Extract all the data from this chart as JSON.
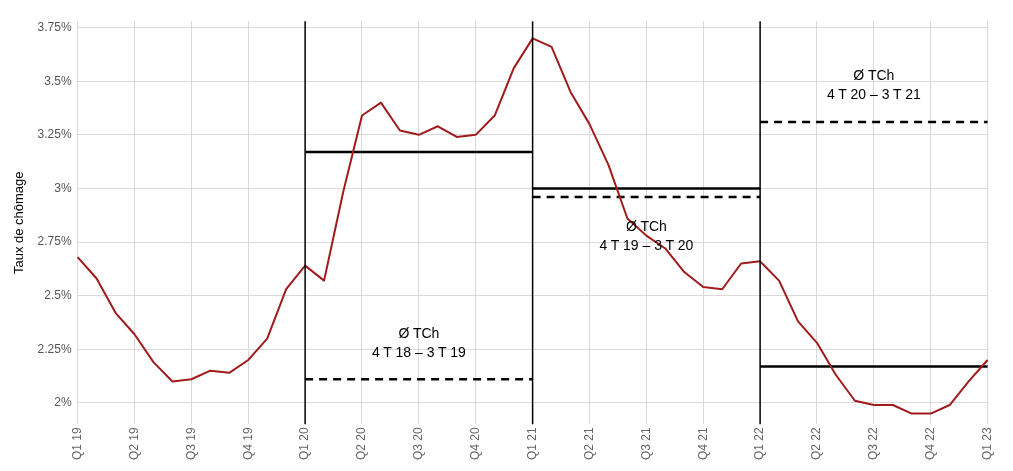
{
  "chart_data": {
    "type": "line",
    "ylabel": "Taux de chômage",
    "categories": [
      "Q1 19",
      null,
      null,
      "Q2 19",
      null,
      null,
      "Q3 19",
      null,
      null,
      "Q4 19",
      null,
      null,
      "Q1 20",
      null,
      null,
      "Q2 20",
      null,
      null,
      "Q3 20",
      null,
      null,
      "Q4 20",
      null,
      null,
      "Q1 21",
      null,
      null,
      "Q2 21",
      null,
      null,
      "Q3 21",
      null,
      null,
      "Q4 21",
      null,
      null,
      "Q1 22",
      null,
      null,
      "Q2 22",
      null,
      null,
      "Q3 22",
      null,
      null,
      "Q4 22",
      null,
      null,
      "Q1 23"
    ],
    "ylim": [
      1.9,
      3.78
    ],
    "yticks": [
      {
        "value": 2,
        "label": "2%"
      },
      {
        "value": 2.25,
        "label": "2.25%"
      },
      {
        "value": 2.5,
        "label": "2.5%"
      },
      {
        "value": 2.75,
        "label": "2.75%"
      },
      {
        "value": 3,
        "label": "3%"
      },
      {
        "value": 3.25,
        "label": "3.25%"
      },
      {
        "value": 3.5,
        "label": "3.5%"
      },
      {
        "value": 3.75,
        "label": "3.75%"
      }
    ],
    "series": [
      {
        "color": "#a01c1c",
        "line_style": "solid",
        "values": [
          2.68,
          2.58,
          2.42,
          2.32,
          2.19,
          2.1,
          2.11,
          2.15,
          2.14,
          2.2,
          2.3,
          2.53,
          2.64,
          2.57,
          2.98,
          3.34,
          3.4,
          3.27,
          3.25,
          3.29,
          3.24,
          3.25,
          3.34,
          3.56,
          3.7,
          3.66,
          3.45,
          3.3,
          3.11,
          2.86,
          2.78,
          2.72,
          2.61,
          2.54,
          2.53,
          2.65,
          2.66,
          2.57,
          2.38,
          2.28,
          2.13,
          2.01,
          1.99,
          1.99,
          1.95,
          1.95,
          1.99,
          2.1,
          2.2
        ]
      },
      {
        "type": "line",
        "color": "#000000",
        "line_style": "solid",
        "x": [
          "Q1 20",
          "Q1 21"
        ],
        "values": [
          3.17,
          3.17
        ]
      },
      {
        "type": "line",
        "color": "#000000",
        "line_style": "dashed",
        "x": [
          "Q1 20",
          "Q1 21"
        ],
        "values": [
          2.11,
          2.11
        ]
      },
      {
        "type": "line",
        "color": "#000000",
        "line_style": "solid",
        "x": [
          "Q1 21",
          "Q1 22"
        ],
        "values": [
          3.0,
          3.0
        ]
      },
      {
        "type": "line",
        "color": "#000000",
        "line_style": "dashed",
        "x": [
          "Q1 21",
          "Q1 22"
        ],
        "values": [
          2.96,
          2.96
        ]
      },
      {
        "type": "line",
        "color": "#000000",
        "line_style": "dashed",
        "x": [
          "Q1 22",
          "Q1 23"
        ],
        "values": [
          3.31,
          3.31
        ]
      },
      {
        "type": "line",
        "color": "#000000",
        "line_style": "solid",
        "x": [
          "Q1 22",
          "Q1 23"
        ],
        "values": [
          2.17,
          2.17
        ]
      }
    ],
    "ref_lines": [
      {
        "axis": "x",
        "value": "Q1 20",
        "color": "#000000"
      },
      {
        "axis": "x",
        "value": "Q1 21",
        "color": "#000000"
      },
      {
        "axis": "x",
        "value": "Q1 22",
        "color": "#000000"
      }
    ],
    "annotations": [
      "Ø TCh\n4 T 18 – 3 T 19",
      "Ø TCh\n4 T 19 – 3 T 20",
      "Ø TCh\n4 T 20 – 3 T 21"
    ],
    "grid": true,
    "legend": false,
    "marker": "none"
  }
}
